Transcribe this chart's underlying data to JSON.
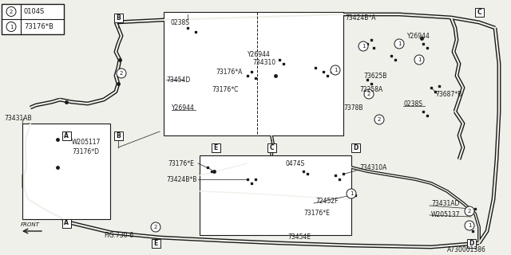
{
  "bg_color": "#f0f0ea",
  "line_color": "#1a1a1a",
  "legend": [
    {
      "num": "1",
      "code": "73176*B"
    },
    {
      "num": "2",
      "code": "0104S"
    }
  ],
  "part_number": "A730001386"
}
